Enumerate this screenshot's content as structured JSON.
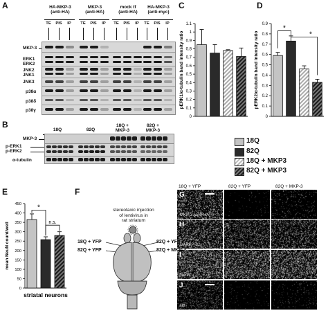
{
  "panelA": {
    "letter": "A",
    "groups": [
      {
        "line1": "HA-MKP-3",
        "line2": "(anti-HA)"
      },
      {
        "line1": "MKP-3",
        "line2": "(anti-HA)"
      },
      {
        "line1": "mock tf",
        "line2": "(anti-HA)"
      },
      {
        "line1": "HA-MKP-3",
        "line2": "(anti-myc)"
      }
    ],
    "lane_labels": [
      "TE",
      "PIS",
      "IP",
      "TE",
      "PIS",
      "IP",
      "TE",
      "PIS",
      "IP",
      "TE",
      "PIS",
      "IP"
    ],
    "row_labels": [
      "MKP-3",
      "ERK1",
      "ERK2",
      "JNK2",
      "JNK1",
      "JNK3",
      "p38α",
      "p38δ",
      "p38γ"
    ]
  },
  "panelB": {
    "letter": "B",
    "groups": [
      {
        "line1": "18Q",
        "line2": ""
      },
      {
        "line1": "82Q",
        "line2": ""
      },
      {
        "line1": "18Q +",
        "line2": "MKP-3"
      },
      {
        "line1": "82Q +",
        "line2": "MKP-3"
      }
    ],
    "row_labels": [
      "MKP-3",
      "p-ERK1",
      "p-ERK2",
      "α-tubulin"
    ]
  },
  "panelC": {
    "letter": "C",
    "ylabel": "pERK1/α-tubulin band intensity ratio",
    "chart_data": {
      "type": "bar",
      "categories": [
        "18Q",
        "82Q",
        "18Q + MKP3",
        "82Q + MKP3"
      ],
      "values": [
        0.85,
        0.75,
        0.78,
        0.71
      ],
      "errors": [
        0.18,
        0.1,
        0.01,
        0.1
      ],
      "yticks": [
        "0",
        "0.1",
        "0.2",
        "0.3",
        "0.4",
        "0.5",
        "0.6",
        "0.7",
        "0.8",
        "0.9",
        "1",
        "1.1"
      ],
      "ylim": [
        0,
        1.1
      ]
    }
  },
  "panelD": {
    "letter": "D",
    "ylabel": "pERK2/α-tubulin band intensity ratio",
    "significance": [
      "*",
      "*"
    ],
    "chart_data": {
      "type": "bar",
      "categories": [
        "18Q",
        "82Q",
        "18Q + MKP3",
        "82Q + MKP3"
      ],
      "values": [
        0.59,
        0.73,
        0.46,
        0.33
      ],
      "errors": [
        0.03,
        0.05,
        0.03,
        0.03
      ],
      "yticks": [
        "0",
        "0.1",
        "0.2",
        "0.3",
        "0.4",
        "0.5",
        "0.6",
        "0.7",
        "0.8",
        "0.9"
      ],
      "ylim": [
        0,
        0.9
      ]
    }
  },
  "legend": {
    "items": [
      "18Q",
      "82Q",
      "18Q + MKP3",
      "82Q + MKP3"
    ],
    "colors": [
      "#c4c4c4",
      "#2a2a2a",
      "hatch-light",
      "hatch-dark"
    ]
  },
  "panelE": {
    "letter": "E",
    "ylabel": "mean NeuN count/well",
    "xlabel": "striatal neurons",
    "significance": [
      "*",
      "n.s."
    ],
    "chart_data": {
      "type": "bar",
      "categories": [
        "18Q",
        "82Q",
        "82Q + MKP3"
      ],
      "values": [
        365,
        258,
        280
      ],
      "errors": [
        30,
        15,
        20
      ],
      "yticks": [
        "0",
        "50",
        "100",
        "150",
        "200",
        "250",
        "300",
        "350",
        "400",
        "450"
      ],
      "ylim": [
        0,
        450
      ]
    }
  },
  "panelF": {
    "letter": "F",
    "title_lines": [
      "stereotaxic injection",
      "of lentivirus in",
      "rat striatum"
    ],
    "left_labels": [
      "18Q + YFP",
      "82Q + YFP"
    ],
    "right_labels": [
      "82Q + YFP",
      "82Q + MKP-3"
    ]
  },
  "panelGJ": {
    "columns": [
      "18Q + YFP",
      "82Q + YFP",
      "82Q + MKP-3"
    ],
    "rows": [
      {
        "letter": "G",
        "label": "MKP-3 (anti-HA)"
      },
      {
        "letter": "H",
        "label": "DARPP-32"
      },
      {
        "letter": "I",
        "label": "NeuN"
      },
      {
        "letter": "J",
        "label": "Htt"
      }
    ]
  }
}
